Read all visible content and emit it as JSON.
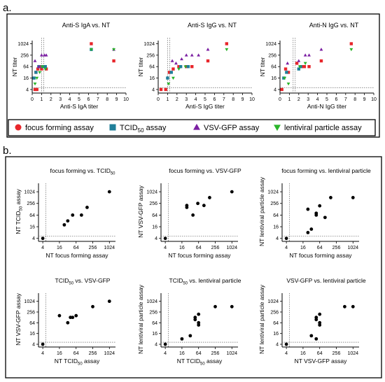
{
  "panels": {
    "a": "a.",
    "b": "b."
  },
  "colors": {
    "focus": "#e8262b",
    "tcid": "#1f7f9a",
    "vsv": "#7b1fa2",
    "lenti": "#2ab52a",
    "mixed": "#333355",
    "frame": "#000000"
  },
  "legend": {
    "items": [
      {
        "label": "focus forming assay",
        "marker": "circle",
        "color": "#e8262b"
      },
      {
        "label_pre": "TCID",
        "label_sub": "50",
        "label_post": " assay",
        "marker": "square",
        "color": "#1f7f9a"
      },
      {
        "label": "VSV-GFP assay",
        "marker": "triangle-up",
        "color": "#7b1fa2"
      },
      {
        "label": "lentiviral particle assay",
        "marker": "triangle-down",
        "color": "#2ab52a"
      }
    ]
  },
  "chart_data": [
    {
      "type": "scatter",
      "panel": "a",
      "title": "Anti-S IgA vs. NT",
      "xlabel": "Anti-S IgA titer",
      "ylabel": "NT titer",
      "xlim": [
        0,
        10
      ],
      "xticks": [
        0,
        1,
        2,
        3,
        4,
        5,
        6,
        7,
        8,
        9,
        10
      ],
      "yscale": "log2",
      "yticks": [
        4,
        16,
        64,
        256,
        1024
      ],
      "vline": 1.0,
      "hline": 5,
      "series": [
        {
          "name": "focus forming assay",
          "marker": "square",
          "points": [
            [
              0.3,
              4
            ],
            [
              0.5,
              4
            ],
            [
              0.4,
              32
            ],
            [
              0.6,
              48
            ],
            [
              0.8,
              64
            ],
            [
              1.0,
              48
            ],
            [
              1.3,
              64
            ],
            [
              1.5,
              48
            ],
            [
              6.3,
              1024
            ],
            [
              8.7,
              128
            ]
          ]
        },
        {
          "name": "TCID50 assay",
          "marker": "square",
          "points": [
            [
              0.2,
              16
            ],
            [
              0.4,
              32
            ],
            [
              0.7,
              64
            ],
            [
              1.1,
              64
            ],
            [
              1.4,
              64
            ],
            [
              6.3,
              512
            ]
          ]
        },
        {
          "name": "VSV-GFP assay",
          "marker": "triangle-up",
          "points": [
            [
              0.3,
              128
            ],
            [
              0.7,
              64
            ],
            [
              1.0,
              256
            ],
            [
              1.3,
              256
            ],
            [
              1.5,
              256
            ],
            [
              8.7,
              512
            ]
          ]
        },
        {
          "name": "lentiviral particle assay",
          "marker": "triangle-down",
          "points": [
            [
              0.3,
              8
            ],
            [
              0.5,
              16
            ],
            [
              0.8,
              32
            ],
            [
              1.1,
              64
            ],
            [
              1.4,
              48
            ],
            [
              6.3,
              512
            ],
            [
              8.7,
              512
            ]
          ]
        }
      ]
    },
    {
      "type": "scatter",
      "panel": "a",
      "title": "Anti-S IgG vs. NT",
      "xlabel": "Anti-S IgG titer",
      "ylabel": "NT titer",
      "xlim": [
        0,
        10
      ],
      "xticks": [
        0,
        1,
        2,
        3,
        4,
        5,
        6,
        7,
        8,
        9,
        10
      ],
      "yscale": "log2",
      "yticks": [
        4,
        16,
        64,
        256,
        1024
      ],
      "vline": 1.0,
      "hline": 5,
      "series": [
        {
          "name": "focus forming assay",
          "marker": "square",
          "points": [
            [
              0.3,
              4
            ],
            [
              0.8,
              4
            ],
            [
              1.2,
              32
            ],
            [
              1.6,
              48
            ],
            [
              2.2,
              64
            ],
            [
              3.0,
              64
            ],
            [
              3.6,
              64
            ],
            [
              5.3,
              128
            ],
            [
              7.3,
              1024
            ]
          ]
        },
        {
          "name": "TCID50 assay",
          "marker": "square",
          "points": [
            [
              1.0,
              16
            ],
            [
              1.4,
              32
            ],
            [
              2.4,
              64
            ],
            [
              3.2,
              64
            ]
          ]
        },
        {
          "name": "VSV-GFP assay",
          "marker": "triangle-up",
          "points": [
            [
              1.5,
              128
            ],
            [
              1.9,
              96
            ],
            [
              2.5,
              160
            ],
            [
              3.0,
              256
            ],
            [
              3.6,
              256
            ],
            [
              4.3,
              256
            ],
            [
              5.3,
              512
            ]
          ]
        },
        {
          "name": "lentiviral particle assay",
          "marker": "triangle-down",
          "points": [
            [
              1.1,
              8
            ],
            [
              1.6,
              16
            ],
            [
              2.2,
              48
            ],
            [
              2.9,
              64
            ],
            [
              7.3,
              512
            ]
          ]
        }
      ]
    },
    {
      "type": "scatter",
      "panel": "a",
      "title": "Anti-N IgG vs. NT",
      "xlabel": "Anti-N IgG titer",
      "ylabel": "NT titer",
      "xlim": [
        0,
        10
      ],
      "xticks": [
        0,
        1,
        2,
        3,
        4,
        5,
        6,
        7,
        8,
        9,
        10
      ],
      "yscale": "log2",
      "yticks": [
        4,
        16,
        64,
        256,
        1024
      ],
      "vline": 1.4,
      "hline": 5,
      "series": [
        {
          "name": "focus forming assay",
          "marker": "square",
          "points": [
            [
              0.2,
              4
            ],
            [
              0.6,
              48
            ],
            [
              0.9,
              32
            ],
            [
              1.8,
              96
            ],
            [
              2.3,
              64
            ],
            [
              2.6,
              64
            ],
            [
              3.1,
              64
            ],
            [
              4.4,
              128
            ],
            [
              7.6,
              1024
            ]
          ]
        },
        {
          "name": "TCID50 assay",
          "marker": "square",
          "points": [
            [
              0.4,
              16
            ],
            [
              0.7,
              32
            ],
            [
              2.0,
              48
            ],
            [
              2.2,
              64
            ]
          ]
        },
        {
          "name": "VSV-GFP assay",
          "marker": "triangle-up",
          "points": [
            [
              0.8,
              96
            ],
            [
              2.0,
              128
            ],
            [
              2.7,
              256
            ],
            [
              3.1,
              256
            ],
            [
              4.4,
              512
            ]
          ]
        },
        {
          "name": "lentiviral particle assay",
          "marker": "triangle-down",
          "points": [
            [
              0.5,
              16
            ],
            [
              0.9,
              8
            ],
            [
              2.1,
              64
            ],
            [
              2.7,
              96
            ],
            [
              7.6,
              512
            ]
          ]
        }
      ]
    },
    {
      "type": "scatter",
      "panel": "b",
      "title_pre": "focus forming vs. TCID",
      "title_sub": "50",
      "title_post": "",
      "xlabel_pre": "NT focus forming assay",
      "xlabel_sub": "",
      "xlabel_post": "",
      "ylabel_pre": "NT TCID",
      "ylabel_sub": "50",
      "ylabel_post": " assay",
      "scale": "log2",
      "ticks": [
        4,
        16,
        64,
        256,
        1024
      ],
      "points": [
        [
          4,
          4
        ],
        [
          24,
          20
        ],
        [
          32,
          32
        ],
        [
          48,
          64
        ],
        [
          100,
          64
        ],
        [
          160,
          160
        ],
        [
          1024,
          1024
        ]
      ]
    },
    {
      "type": "scatter",
      "panel": "b",
      "title_pre": "focus forming vs. VSV-GFP",
      "title_sub": "",
      "title_post": "",
      "xlabel_pre": "NT focus forming assay",
      "xlabel_sub": "",
      "xlabel_post": "",
      "ylabel_pre": "NT VSV-GFP assay",
      "ylabel_sub": "",
      "ylabel_post": "",
      "scale": "log2",
      "ticks": [
        4,
        16,
        64,
        256,
        1024
      ],
      "points": [
        [
          4,
          4
        ],
        [
          24,
          160
        ],
        [
          24,
          200
        ],
        [
          40,
          64
        ],
        [
          60,
          256
        ],
        [
          100,
          200
        ],
        [
          160,
          512
        ],
        [
          1024,
          1024
        ]
      ]
    },
    {
      "type": "scatter",
      "panel": "b",
      "title_pre": "focus forming vs. lentiviral particle",
      "title_sub": "",
      "title_post": "",
      "xlabel_pre": "NT focus forming assay",
      "xlabel_sub": "",
      "xlabel_post": "",
      "ylabel_pre": "NT lentiviral particle assay",
      "ylabel_sub": "",
      "ylabel_post": "",
      "scale": "log2",
      "ticks": [
        4,
        16,
        64,
        256,
        1024
      ],
      "points": [
        [
          4,
          4
        ],
        [
          24,
          8
        ],
        [
          32,
          12
        ],
        [
          24,
          128
        ],
        [
          48,
          80
        ],
        [
          48,
          64
        ],
        [
          64,
          192
        ],
        [
          100,
          48
        ],
        [
          160,
          512
        ],
        [
          1024,
          512
        ]
      ]
    },
    {
      "type": "scatter",
      "panel": "b",
      "title_pre": "TCID",
      "title_sub": "50",
      "title_post": " vs. VSV-GFP",
      "xlabel_pre": "NT TCID",
      "xlabel_sub": "50",
      "xlabel_post": " assay",
      "ylabel_pre": "NT VSV-GFP assay",
      "ylabel_sub": "",
      "ylabel_post": "",
      "scale": "log2",
      "ticks": [
        4,
        16,
        64,
        256,
        1024
      ],
      "points": [
        [
          4,
          4
        ],
        [
          16,
          160
        ],
        [
          32,
          64
        ],
        [
          40,
          128
        ],
        [
          48,
          128
        ],
        [
          64,
          160
        ],
        [
          256,
          512
        ],
        [
          1024,
          1024
        ]
      ]
    },
    {
      "type": "scatter",
      "panel": "b",
      "title_pre": "TCID",
      "title_sub": "50",
      "title_post": " vs. lentiviral particle",
      "xlabel_pre": "NT TCID",
      "xlabel_sub": "50",
      "xlabel_post": " assay",
      "ylabel_pre": "NT lentiviral particle assay",
      "ylabel_sub": "",
      "ylabel_post": "",
      "scale": "log2",
      "ticks": [
        4,
        16,
        64,
        256,
        1024
      ],
      "points": [
        [
          4,
          4
        ],
        [
          16,
          8
        ],
        [
          32,
          12
        ],
        [
          48,
          96
        ],
        [
          48,
          128
        ],
        [
          64,
          48
        ],
        [
          64,
          64
        ],
        [
          64,
          192
        ],
        [
          256,
          512
        ],
        [
          1024,
          512
        ]
      ]
    },
    {
      "type": "scatter",
      "panel": "b",
      "title_pre": "VSV-GFP vs. lentiviral particle",
      "title_sub": "",
      "title_post": "",
      "xlabel_pre": "NT VSV-GFP assay",
      "xlabel_sub": "",
      "xlabel_post": "",
      "ylabel_pre": "NT lentiviral particle assay",
      "ylabel_sub": "",
      "ylabel_post": "",
      "scale": "log2",
      "ticks": [
        4,
        16,
        64,
        256,
        1024
      ],
      "points": [
        [
          4,
          4
        ],
        [
          32,
          12
        ],
        [
          48,
          8
        ],
        [
          48,
          96
        ],
        [
          64,
          48
        ],
        [
          64,
          64
        ],
        [
          64,
          192
        ],
        [
          48,
          128
        ],
        [
          512,
          512
        ],
        [
          1024,
          512
        ]
      ]
    }
  ]
}
